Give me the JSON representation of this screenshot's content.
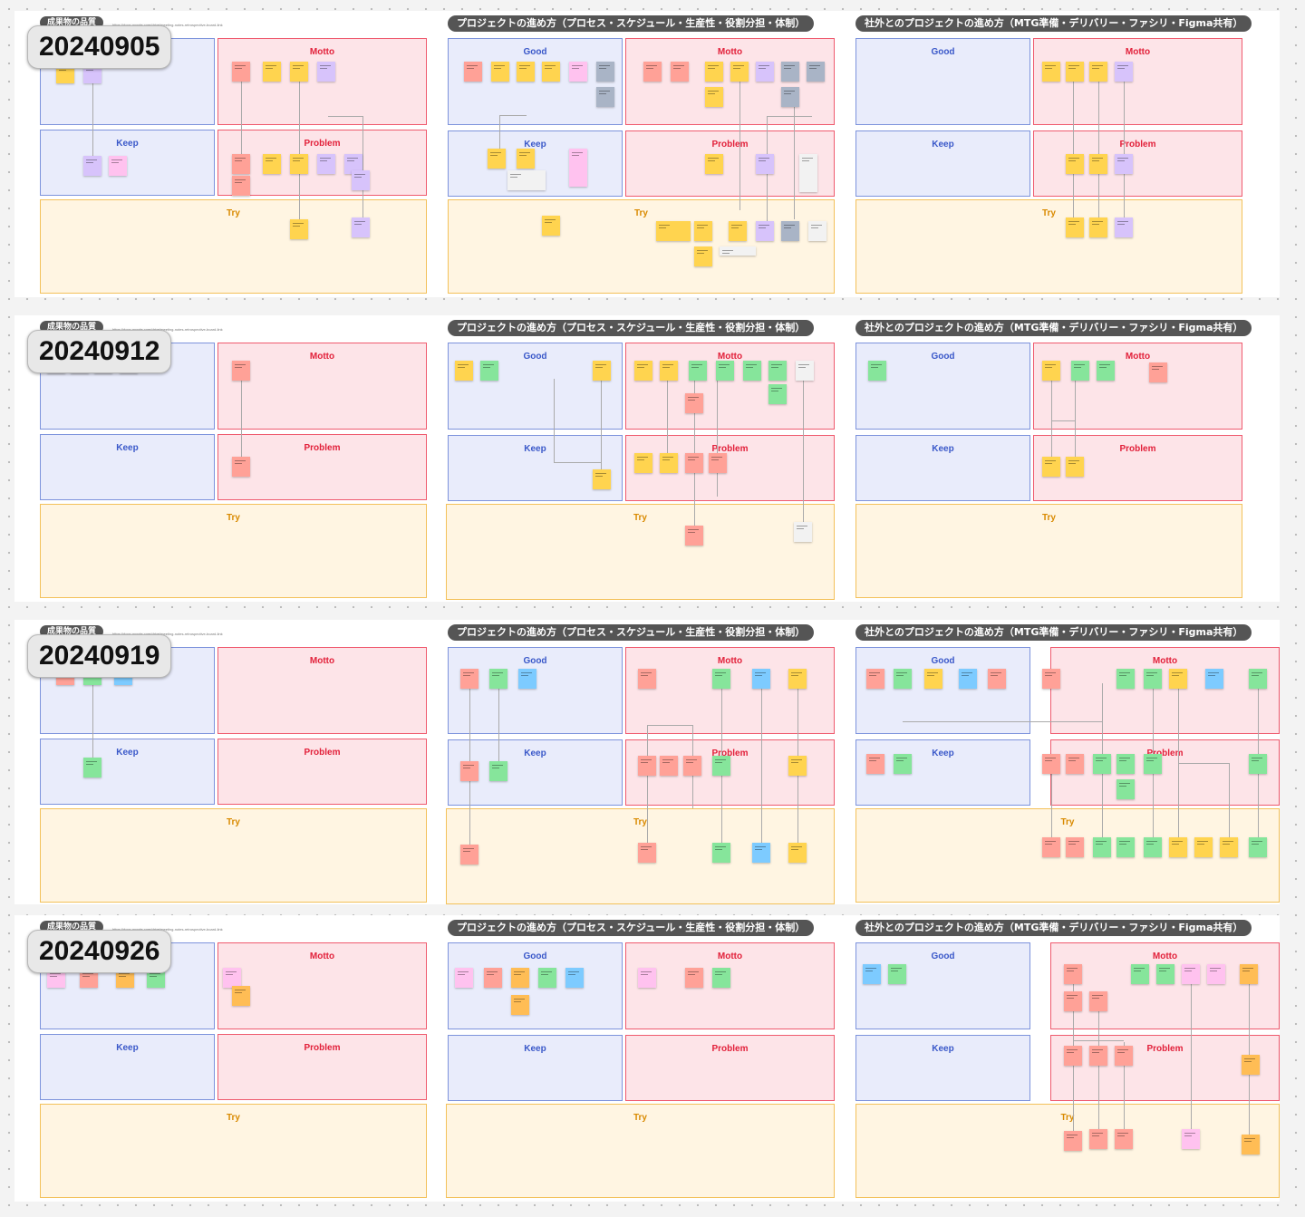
{
  "labels": {
    "frame_small": "成果物の品質",
    "frame_a": "プロジェクトの進め方（プロセス・スケジュール・生産性・役割分担・体制）",
    "frame_b": "社外とのプロジェクトの進め方（MTG準備・デリバリー・ファシリ・Figma共有）",
    "good": "Good",
    "motto": "Motto",
    "keep": "Keep",
    "problem": "Problem",
    "try": "Try"
  },
  "boards": [
    {
      "date": "20240905",
      "url": "https://docs.google.com/drive/meeting-notes-retrospective-board-link"
    },
    {
      "date": "20240912",
      "url": "https://docs.google.com/drive/meeting-notes-retrospective-board-link"
    },
    {
      "date": "20240919",
      "url": "https://docs.google.com/drive/meeting-notes-retrospective-board-link"
    },
    {
      "date": "20240926",
      "url": "https://docs.google.com/drive/meeting-notes-retrospective-board-link"
    }
  ],
  "colors": {
    "sticky_yellow": "#ffd44f",
    "sticky_purple": "#d7c3fb",
    "sticky_pink": "#ffc2ef",
    "sticky_salmon": "#ffa197",
    "sticky_green": "#86e59b",
    "sticky_blue": "#7dcbff",
    "sticky_gray": "#a9b4c6",
    "sticky_white": "#f2f2f2",
    "sticky_orange": "#ffbd55"
  }
}
